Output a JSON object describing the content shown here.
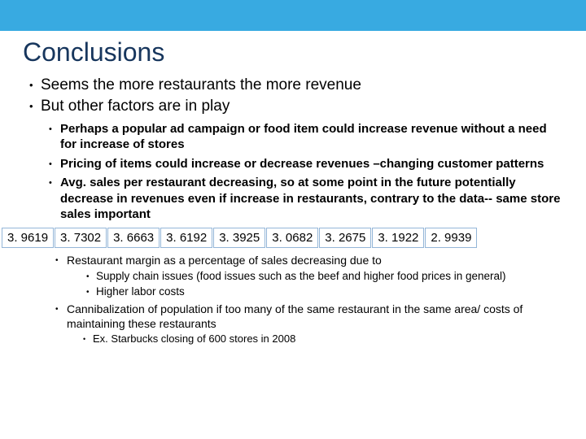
{
  "accent_color": "#38aae1",
  "title_color": "#17365d",
  "cell_border_color": "#94b6d8",
  "title": "Conclusions",
  "level1": [
    "Seems the more restaurants the more revenue",
    "But other factors are in play"
  ],
  "level2_top": [
    "Perhaps a popular ad campaign or food item could increase revenue without a need for increase of stores",
    "Pricing of items could increase or decrease revenues –changing customer patterns",
    "Avg. sales per restaurant decreasing, so at some point in the future potentially decrease in revenues even if increase in restaurants, contrary to the data-- same store sales important"
  ],
  "data_row": [
    "3. 9619",
    "3. 7302",
    "3. 6663",
    "3. 6192",
    "3. 3925",
    "3. 0682",
    "3. 2675",
    "3. 1922",
    "2. 9939"
  ],
  "lower": {
    "margin_item": "Restaurant margin as a percentage of sales decreasing due to",
    "margin_sub": [
      "Supply chain issues (food issues such as the beef and higher food prices in general)",
      "Higher labor costs"
    ],
    "cann_item": "Cannibalization of population if too many of the same restaurant in the same area/ costs of maintaining these restaurants",
    "cann_sub": [
      "Ex. Starbucks closing of 600 stores in 2008"
    ]
  }
}
